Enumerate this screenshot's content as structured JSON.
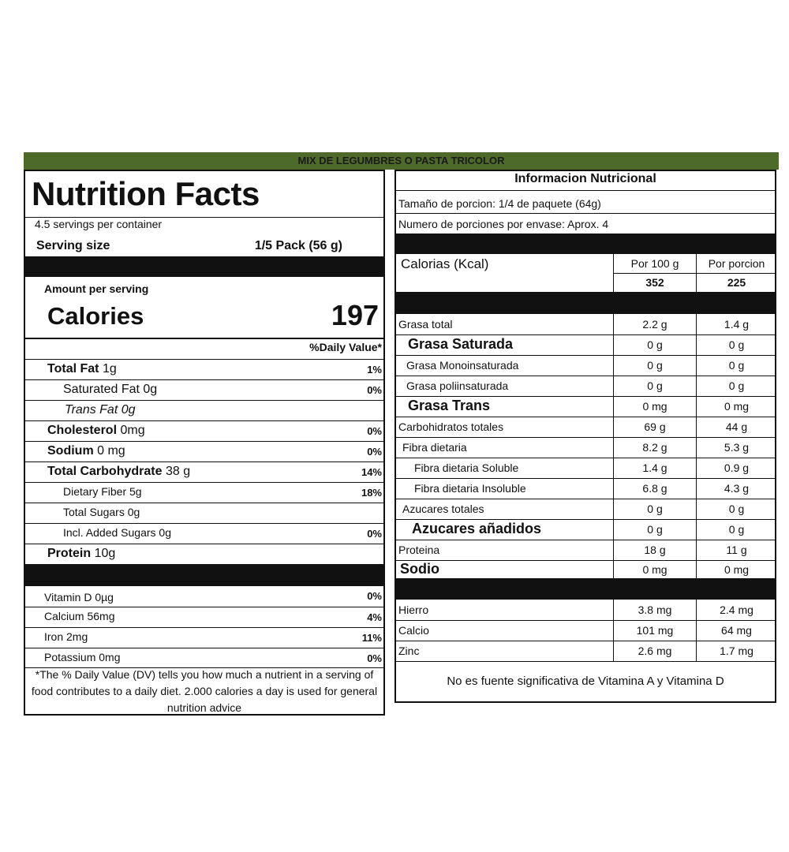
{
  "banner": "MIX DE LEGUMBRES O PASTA TRICOLOR",
  "facts": {
    "title": "Nutrition Facts",
    "servings": "4.5 servings per container",
    "serving_size_label": "Serving size",
    "serving_size_value": "1/5 Pack (56 g)",
    "amount_per_serving": "Amount per serving",
    "calories_label": "Calories",
    "calories_value": "197",
    "dv_header": "%Daily Value*",
    "rows": [
      {
        "label": "Total Fat",
        "value": "1g",
        "pct": "1%"
      },
      {
        "label": "Saturated Fat 0g",
        "pct": "0%"
      },
      {
        "label": "Trans Fat 0g",
        "pct": ""
      },
      {
        "label": "Cholesterol",
        "value": "0mg",
        "pct": "0%"
      },
      {
        "label": "Sodium",
        "value": "0 mg",
        "pct": "0%"
      },
      {
        "label": "Total Carbohydrate",
        "value": "38 g",
        "pct": "14%"
      },
      {
        "label": "Dietary Fiber 5g",
        "pct": "18%"
      },
      {
        "label": "Total Sugars 0g",
        "pct": ""
      },
      {
        "label": "Incl. Added Sugars 0g",
        "pct": "0%"
      },
      {
        "label": "Protein",
        "value": "10g",
        "pct": ""
      }
    ],
    "minerals": [
      {
        "label": "Vitamin D 0µg",
        "pct": "0%"
      },
      {
        "label": "Calcium 56mg",
        "pct": "4%"
      },
      {
        "label": "Iron 2mg",
        "pct": "11%"
      },
      {
        "label": "Potassium 0mg",
        "pct": "0%"
      }
    ],
    "footnote": "*The % Daily Value (DV) tells you how much a nutrient in a serving of food contributes to a daily diet. 2.000 calories a day is used for general nutrition advice"
  },
  "info": {
    "title": "Informacion Nutricional",
    "portion": "Tamaño de porcion: 1/4 de paquete (64g)",
    "portions": "Numero de porciones por envase: Aprox. 4",
    "calories_label": "Calorias (Kcal)",
    "col1": "Por 100 g",
    "col2": "Por porcion",
    "cal_100": "352",
    "cal_portion": "225",
    "rows": [
      {
        "label": "Grasa total",
        "v1": "2.2 g",
        "v2": "1.4 g"
      },
      {
        "label": "Grasa Saturada",
        "v1": "0 g",
        "v2": "0  g"
      },
      {
        "label": "Grasa Monoinsaturada",
        "v1": "0 g",
        "v2": "0 g"
      },
      {
        "label": "Grasa poliinsaturada",
        "v1": "0 g",
        "v2": "0 g"
      },
      {
        "label": "Grasa Trans",
        "v1": "0 mg",
        "v2": "0 mg"
      },
      {
        "label": "Carbohidratos totales",
        "v1": "69 g",
        "v2": "44 g"
      },
      {
        "label": "Fibra dietaria",
        "v1": "8.2 g",
        "v2": "5.3 g"
      },
      {
        "label": "Fibra dietaria Soluble",
        "v1": "1.4 g",
        "v2": "0.9 g"
      },
      {
        "label": "Fibra dietaria Insoluble",
        "v1": "6.8 g",
        "v2": "4.3 g"
      },
      {
        "label": "Azucares totales",
        "v1": "0 g",
        "v2": "0 g"
      },
      {
        "label": "Azucares añadidos",
        "v1": "0 g",
        "v2": "0 g"
      },
      {
        "label": "Proteina",
        "v1": "18 g",
        "v2": "11 g"
      },
      {
        "label": "Sodio",
        "v1": "0 mg",
        "v2": "0 mg"
      }
    ],
    "minerals": [
      {
        "label": "Hierro",
        "v1": "3.8 mg",
        "v2": "2.4 mg"
      },
      {
        "label": "Calcio",
        "v1": "101 mg",
        "v2": "64 mg"
      },
      {
        "label": "Zinc",
        "v1": "2.6 mg",
        "v2": "1.7 mg"
      }
    ],
    "note": "No es fuente significativa de Vitamina A y Vitamina D"
  }
}
